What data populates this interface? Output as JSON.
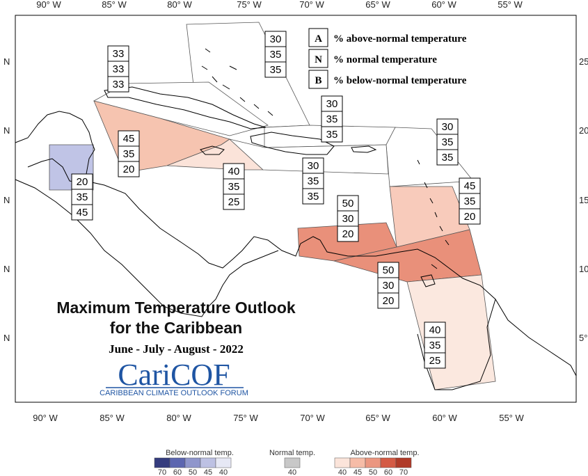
{
  "top_axis": [
    "90° W",
    "85° W",
    "80° W",
    "75° W",
    "70° W",
    "65° W",
    "60° W",
    "55° W"
  ],
  "bottom_axis": [
    "90° W",
    "85° W",
    "80° W",
    "75° W",
    "70° W",
    "65° W",
    "60° W",
    "55° W"
  ],
  "left_axis": [
    "N",
    "N",
    "N",
    "N",
    "N"
  ],
  "right_axis": [
    "25",
    "20",
    "15",
    "10",
    "5°"
  ],
  "legend": [
    {
      "key": "A",
      "text": "% above-normal temperature"
    },
    {
      "key": "N",
      "text": "% normal temperature"
    },
    {
      "key": "B",
      "text": "% below-normal temperature"
    }
  ],
  "zones": [
    {
      "id": "bahamas",
      "probs": [
        "30",
        "35",
        "35"
      ],
      "fill": "#ffffff"
    },
    {
      "id": "cuba",
      "probs": [
        "33",
        "33",
        "33"
      ],
      "fill": "#ffffff"
    },
    {
      "id": "hispaniola-north",
      "probs": [
        "30",
        "35",
        "35"
      ],
      "fill": "#ffffff"
    },
    {
      "id": "leeward-north",
      "probs": [
        "30",
        "35",
        "35"
      ],
      "fill": "#ffffff"
    },
    {
      "id": "cayman",
      "probs": [
        "45",
        "35",
        "20"
      ],
      "fill": "#f6c4b0"
    },
    {
      "id": "jamaica",
      "probs": [
        "40",
        "35",
        "25"
      ],
      "fill": "#fbe3d9"
    },
    {
      "id": "hispaniola-south",
      "probs": [
        "30",
        "35",
        "35"
      ],
      "fill": "#ffffff"
    },
    {
      "id": "belize",
      "probs": [
        "20",
        "35",
        "45"
      ],
      "fill": "#c0c4e6"
    },
    {
      "id": "windward",
      "probs": [
        "45",
        "35",
        "20"
      ],
      "fill": "#f8cbbb"
    },
    {
      "id": "abc",
      "probs": [
        "50",
        "30",
        "20"
      ],
      "fill": "#e9907a"
    },
    {
      "id": "trinidad",
      "probs": [
        "50",
        "30",
        "20"
      ],
      "fill": "#e9907a"
    },
    {
      "id": "guianas",
      "probs": [
        "40",
        "35",
        "25"
      ],
      "fill": "#fbe8df"
    }
  ],
  "title_line1": "Maximum Temperature Outlook",
  "title_line2": "for the Caribbean",
  "season": "June - July - August - 2022",
  "logo_text": "CariCOF",
  "logo_sub": "CARIBBEAN CLIMATE OUTLOOK FORUM",
  "colorbar": {
    "below": {
      "title": "Below-normal temp.",
      "labels": [
        "70",
        "60",
        "50",
        "45",
        "40"
      ],
      "colors": [
        "#353c7e",
        "#5c66b0",
        "#8f96cc",
        "#bdc1e3",
        "#e6e8f5"
      ]
    },
    "normal": {
      "title": "Normal temp.",
      "labels": [
        "40"
      ],
      "colors": [
        "#c8c8c8"
      ]
    },
    "above": {
      "title": "Above-normal temp.",
      "labels": [
        "40",
        "45",
        "50",
        "60",
        "70"
      ],
      "colors": [
        "#fbe4da",
        "#f6bca7",
        "#eb9680",
        "#d45b45",
        "#b03a28"
      ]
    }
  }
}
